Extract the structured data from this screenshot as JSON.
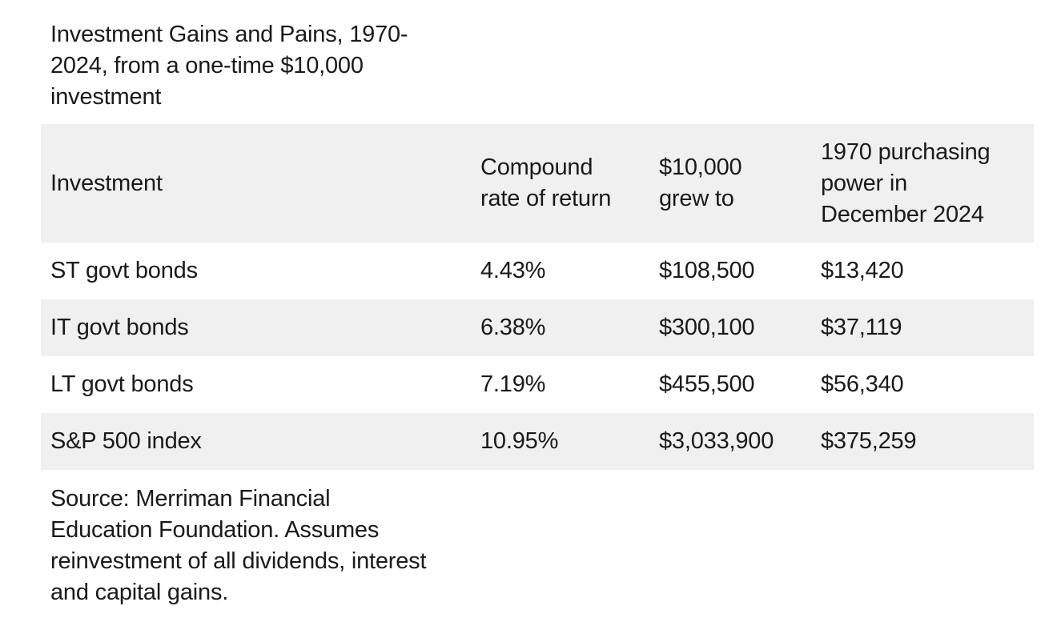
{
  "title": "Investment Gains and Pains, 1970-\n2024, from a one-time $10,000\ninvestment",
  "table": {
    "headers": [
      "Investment",
      "Compound\nrate of return",
      "$10,000\ngrew to",
      "1970 purchasing\npower in\nDecember 2024"
    ],
    "rows": [
      [
        "ST govt bonds",
        "4.43%",
        "$108,500",
        "$13,420"
      ],
      [
        "IT govt bonds",
        "6.38%",
        "$300,100",
        "$37,119"
      ],
      [
        "LT govt bonds",
        "7.19%",
        "$455,500",
        "$56,340"
      ],
      [
        "S&P 500 index",
        "10.95%",
        "$3,033,900",
        "$375,259"
      ]
    ]
  },
  "source": "Source: Merriman Financial Education Foundation. Assumes reinvestment of all dividends, interest and capital gains."
}
